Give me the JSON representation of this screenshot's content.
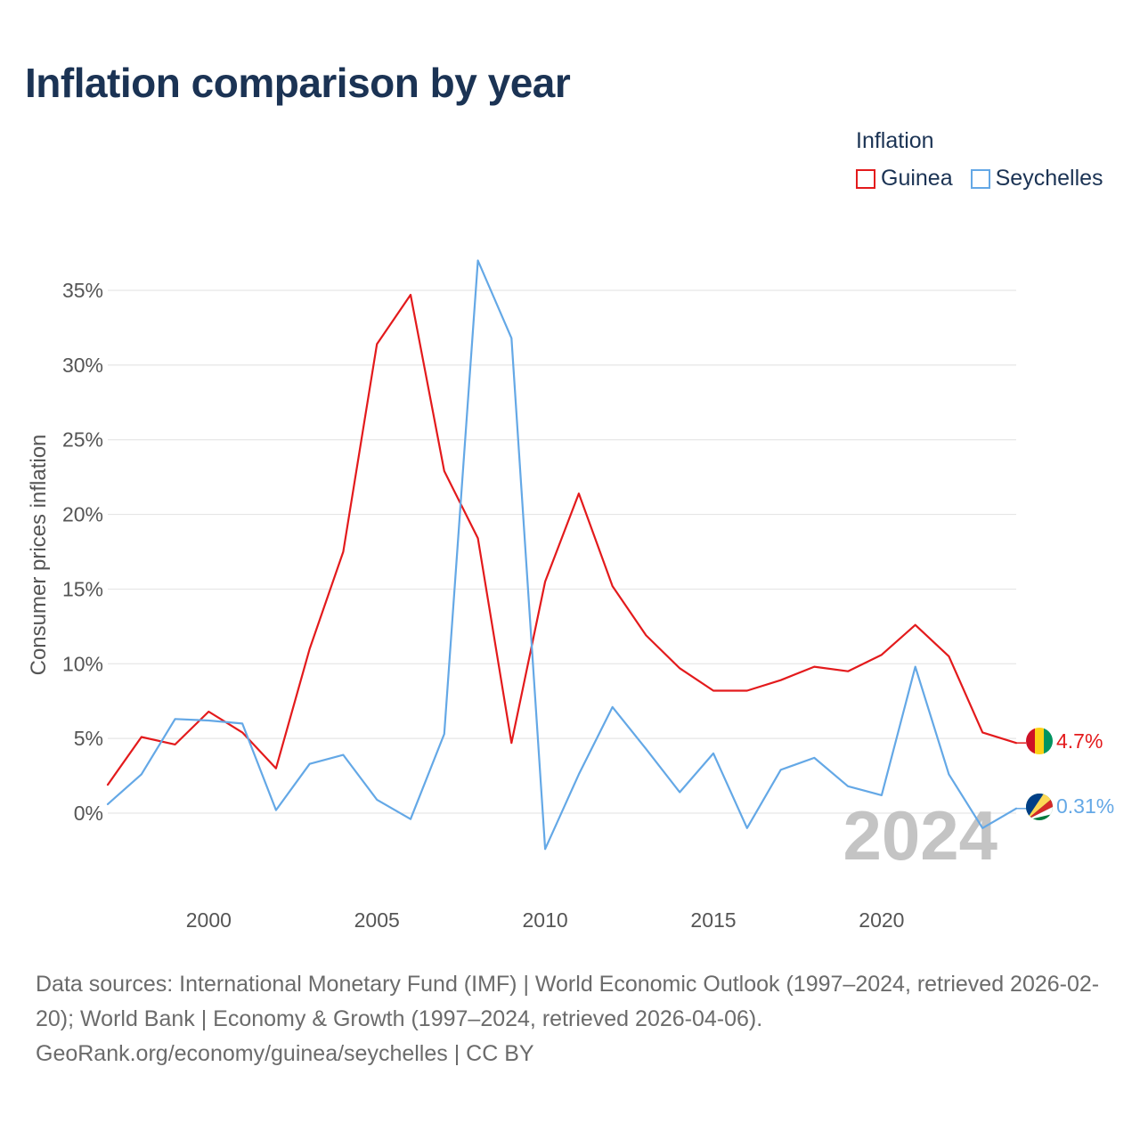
{
  "title": "Inflation comparison by year",
  "legend": {
    "title": "Inflation",
    "items": [
      {
        "label": "Guinea",
        "color": "#e31a1c"
      },
      {
        "label": "Seychelles",
        "color": "#64a8e6"
      }
    ]
  },
  "chart_data": {
    "type": "line",
    "ylabel": "Consumer prices inflation",
    "x": [
      1997,
      1998,
      1999,
      2000,
      2001,
      2002,
      2003,
      2004,
      2005,
      2006,
      2007,
      2008,
      2009,
      2010,
      2011,
      2012,
      2013,
      2014,
      2015,
      2016,
      2017,
      2018,
      2019,
      2020,
      2021,
      2022,
      2023,
      2024
    ],
    "xlim": [
      1997,
      2024
    ],
    "ylim": [
      -5.5,
      38.5
    ],
    "x_ticks": [
      2000,
      2005,
      2010,
      2015,
      2020
    ],
    "x_tick_labels": [
      "2000",
      "2005",
      "2010",
      "2015",
      "2020"
    ],
    "y_ticks": [
      0,
      5,
      10,
      15,
      20,
      25,
      30,
      35
    ],
    "y_tick_labels": [
      "0%",
      "5%",
      "10%",
      "15%",
      "20%",
      "25%",
      "30%",
      "35%"
    ],
    "series": [
      {
        "name": "Guinea",
        "color": "#e31a1c",
        "values": [
          1.9,
          5.1,
          4.6,
          6.8,
          5.4,
          3.0,
          11.0,
          17.5,
          31.4,
          34.7,
          22.9,
          18.4,
          4.7,
          15.5,
          21.4,
          15.2,
          11.9,
          9.7,
          8.2,
          8.2,
          8.9,
          9.8,
          9.5,
          10.6,
          12.6,
          10.5,
          5.4,
          4.7
        ],
        "end_label": "4.7%"
      },
      {
        "name": "Seychelles",
        "color": "#64a8e6",
        "values": [
          0.6,
          2.6,
          6.3,
          6.2,
          6.0,
          0.2,
          3.3,
          3.9,
          0.9,
          -0.4,
          5.3,
          37.0,
          31.8,
          -2.4,
          2.6,
          7.1,
          4.3,
          1.4,
          4.0,
          -1.0,
          2.9,
          3.7,
          1.8,
          1.2,
          9.8,
          2.6,
          -1.0,
          0.31
        ],
        "end_label": "0.31%"
      }
    ],
    "year_label": "2024"
  },
  "footer": {
    "sources": "Data sources: International Monetary Fund (IMF) | World Economic Outlook (1997–2024, retrieved 2026-02-20); World Bank | Economy & Growth (1997–2024, retrieved 2026-04-06).",
    "link": "GeoRank.org/economy/guinea/seychelles | CC BY"
  }
}
